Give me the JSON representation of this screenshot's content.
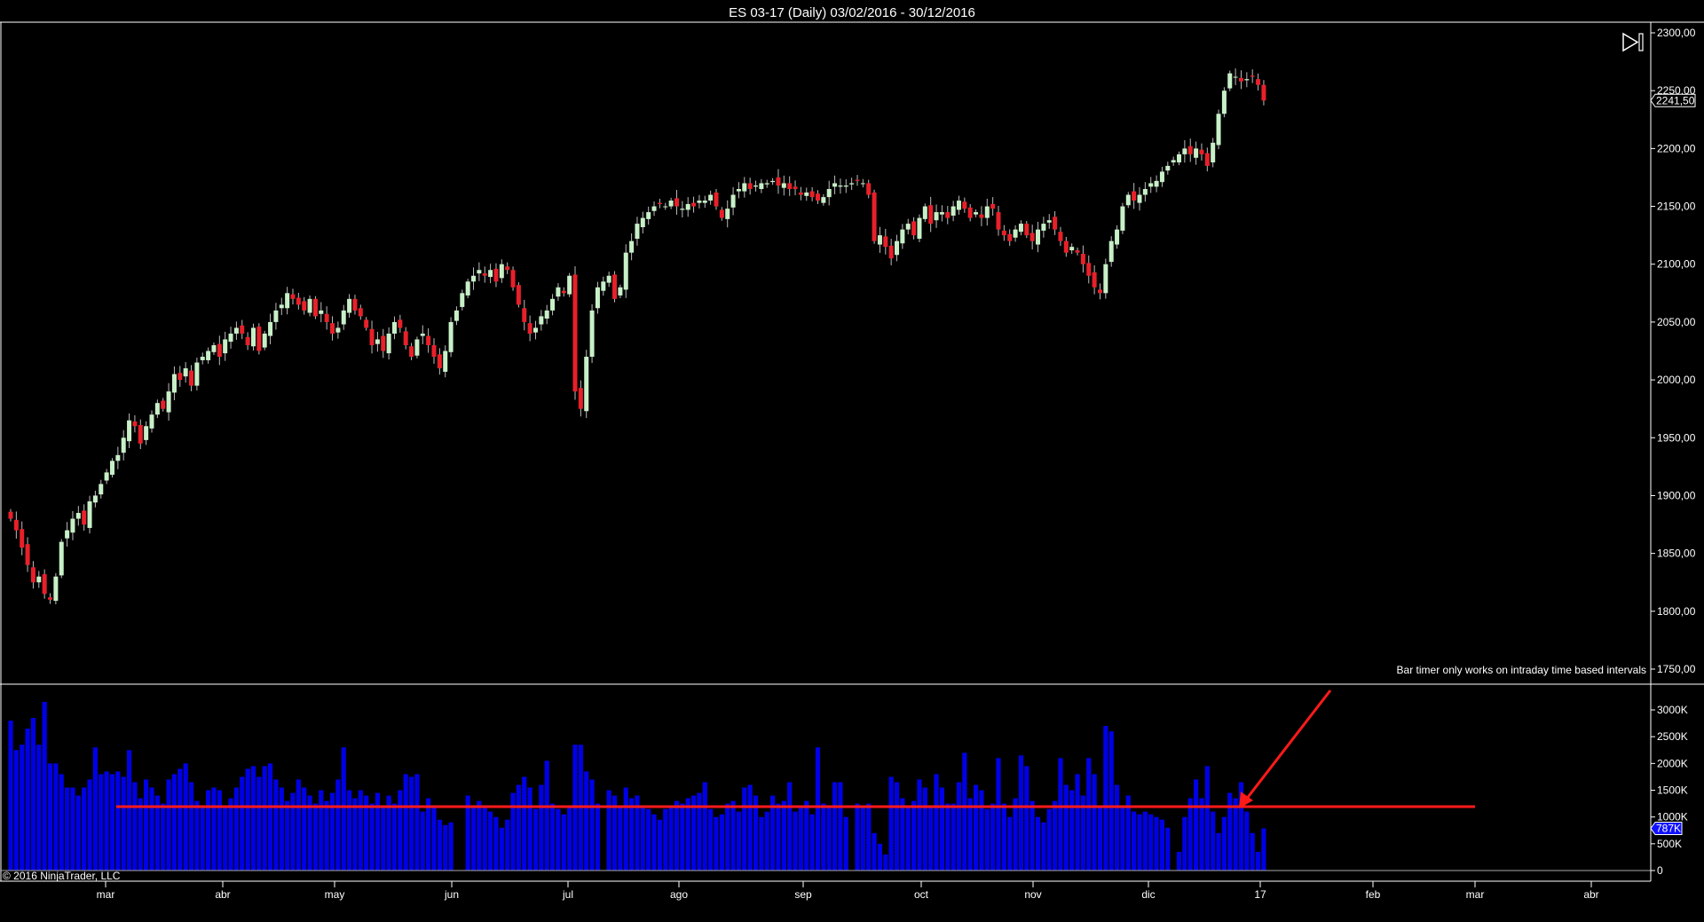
{
  "window": {
    "title": "ES 03-17 (Daily)  03/02/2016 - 30/12/2016"
  },
  "notes": {
    "bar_timer": "Bar timer only works on intraday time based intervals",
    "copyright": "© 2016 NinjaTrader, LLC"
  },
  "icons": {
    "skip_to_end": "skip-to-end-icon"
  },
  "colors": {
    "up_candle": "#c8f0c8",
    "down_candle": "#e8202a",
    "volume": "#0000e6",
    "annotation": "#ff1a1a",
    "background": "#000000"
  },
  "chart_data": [
    {
      "type": "candlestick",
      "title": "ES 03-17 (Daily)  03/02/2016 - 30/12/2016",
      "y_ticks": [
        "2300,00",
        "2250,00",
        "2200,00",
        "2150,00",
        "2100,00",
        "2050,00",
        "2000,00",
        "1950,00",
        "1900,00",
        "1850,00",
        "1800,00",
        "1750,00"
      ],
      "ylim": [
        1750,
        2300
      ],
      "last_price_label": "2241,50",
      "last_price": 2241.5,
      "x_ticks": [
        "mar",
        "abr",
        "may",
        "jun",
        "jul",
        "ago",
        "sep",
        "oct",
        "nov",
        "dic",
        "17",
        "feb",
        "mar",
        "abr"
      ],
      "closes": [
        1880,
        1870,
        1855,
        1840,
        1825,
        1830,
        1815,
        1810,
        1830,
        1860,
        1870,
        1880,
        1885,
        1875,
        1895,
        1900,
        1910,
        1920,
        1930,
        1935,
        1950,
        1965,
        1960,
        1945,
        1960,
        1970,
        1980,
        1975,
        1990,
        2005,
        2000,
        2010,
        1995,
        2015,
        2020,
        2025,
        2030,
        2020,
        2035,
        2040,
        2045,
        2040,
        2030,
        2045,
        2025,
        2040,
        2050,
        2060,
        2065,
        2075,
        2070,
        2065,
        2060,
        2070,
        2055,
        2060,
        2050,
        2040,
        2045,
        2060,
        2070,
        2060,
        2055,
        2045,
        2030,
        2035,
        2025,
        2040,
        2050,
        2045,
        2030,
        2020,
        2035,
        2040,
        2030,
        2020,
        2010,
        2025,
        2050,
        2060,
        2075,
        2085,
        2090,
        2095,
        2090,
        2095,
        2085,
        2100,
        2095,
        2080,
        2065,
        2050,
        2040,
        2045,
        2055,
        2060,
        2070,
        2080,
        2075,
        2090,
        1990,
        1975,
        2020,
        2060,
        2080,
        2085,
        2090,
        2070,
        2080,
        2110,
        2120,
        2135,
        2140,
        2145,
        2150,
        2152,
        2150,
        2155,
        2150,
        2148,
        2152,
        2150,
        2155,
        2155,
        2160,
        2150,
        2140,
        2148,
        2160,
        2165,
        2170,
        2165,
        2168,
        2170,
        2170,
        2172,
        2168,
        2170,
        2165,
        2165,
        2160,
        2162,
        2158,
        2155,
        2158,
        2165,
        2170,
        2168,
        2168,
        2170,
        2172,
        2170,
        2160,
        2120,
        2125,
        2115,
        2105,
        2120,
        2130,
        2135,
        2125,
        2140,
        2150,
        2135,
        2145,
        2145,
        2140,
        2150,
        2155,
        2148,
        2140,
        2145,
        2140,
        2150,
        2148,
        2130,
        2125,
        2120,
        2130,
        2135,
        2125,
        2120,
        2130,
        2135,
        2138,
        2130,
        2120,
        2110,
        2115,
        2110,
        2100,
        2090,
        2080,
        2075,
        2100,
        2120,
        2130,
        2150,
        2160,
        2155,
        2160,
        2165,
        2170,
        2172,
        2180,
        2185,
        2190,
        2195,
        2200,
        2195,
        2200,
        2195,
        2185,
        2205,
        2230,
        2250,
        2265,
        2262,
        2258,
        2260,
        2262,
        2255,
        2241.5
      ]
    },
    {
      "type": "bar",
      "series": [
        {
          "values_unit": "K"
        }
      ],
      "y_ticks": [
        "3000K",
        "2500K",
        "2000K",
        "1500K",
        "1000K",
        "500K",
        "0"
      ],
      "ylim": [
        0,
        3300
      ],
      "last_volume_label": "787K",
      "reference_line_value": 1200,
      "volumes": [
        2800,
        2250,
        2350,
        2650,
        2850,
        2350,
        3150,
        2000,
        2000,
        1800,
        1550,
        1550,
        1400,
        1550,
        1700,
        2300,
        1800,
        1850,
        1800,
        1850,
        1750,
        2250,
        1650,
        1350,
        1700,
        1550,
        1400,
        1250,
        1700,
        1800,
        1900,
        2000,
        1650,
        1300,
        1200,
        1500,
        1550,
        1500,
        1200,
        1350,
        1550,
        1750,
        1900,
        1950,
        1750,
        1950,
        2000,
        1700,
        1550,
        1300,
        1450,
        1700,
        1550,
        1400,
        1250,
        1500,
        1300,
        1450,
        1700,
        2300,
        1500,
        1350,
        1500,
        1400,
        1250,
        1450,
        1200,
        1400,
        1250,
        1500,
        1800,
        1750,
        1800,
        1100,
        1350,
        1200,
        950,
        850,
        900,
        0,
        0,
        1400,
        1200,
        1300,
        1200,
        1100,
        1000,
        800,
        950,
        1450,
        1600,
        1750,
        1550,
        1150,
        1600,
        2050,
        1250,
        1150,
        1050,
        1200,
        2350,
        2350,
        1850,
        1700,
        1250,
        0,
        1500,
        1400,
        1200,
        1550,
        1350,
        1400,
        1200,
        1150,
        1050,
        950,
        1150,
        1200,
        1300,
        1250,
        1350,
        1400,
        1450,
        1650,
        1150,
        1000,
        1050,
        1250,
        1300,
        1100,
        1550,
        1600,
        1400,
        1000,
        1100,
        1400,
        1250,
        1300,
        1650,
        1100,
        1200,
        1300,
        1050,
        2300,
        1250,
        1200,
        1650,
        1650,
        1000,
        0,
        1250,
        1200,
        1250,
        700,
        500,
        300,
        1750,
        1650,
        1350,
        1200,
        1300,
        1700,
        1550,
        1200,
        1800,
        1550,
        1250,
        1250,
        1650,
        2200,
        1350,
        1600,
        1500,
        1150,
        1250,
        2100,
        1250,
        1000,
        1350,
        2150,
        1950,
        1300,
        1000,
        900,
        1150,
        1300,
        2100,
        1600,
        1500,
        1800,
        1400,
        2100,
        1800,
        1200,
        2700,
        2600,
        1600,
        1200,
        1400,
        1100,
        1050,
        1100,
        1050,
        1000,
        950,
        800,
        0,
        350,
        1000,
        1350,
        1700,
        1350,
        1950,
        1100,
        700,
        1000,
        1450,
        1350,
        1650,
        1100,
        700,
        350,
        787
      ]
    }
  ]
}
